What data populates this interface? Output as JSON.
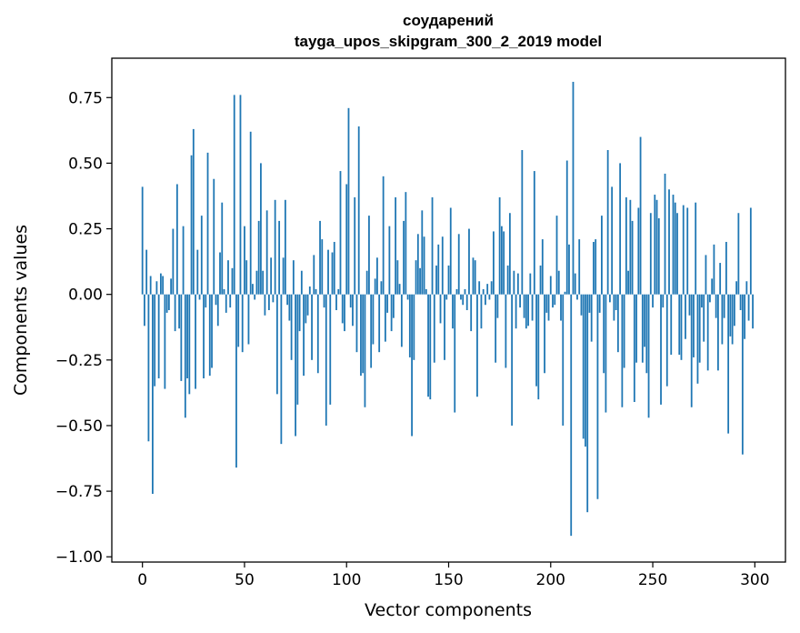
{
  "chart_data": {
    "type": "bar",
    "title": "соударений",
    "subtitle": "tayga_upos_skipgram_300_2_2019 model",
    "xlabel": "Vector components",
    "ylabel": "Components values",
    "xlim": [
      -15,
      315
    ],
    "ylim": [
      -1.02,
      0.9
    ],
    "xticks": [
      0,
      50,
      100,
      150,
      200,
      250,
      300
    ],
    "yticks": [
      -1.0,
      -0.75,
      -0.5,
      -0.25,
      0.0,
      0.25,
      0.5,
      0.75
    ],
    "ytick_labels": [
      "−1.00",
      "−0.75",
      "−0.50",
      "−0.25",
      "0.00",
      "0.25",
      "0.50",
      "0.75"
    ],
    "grid": false,
    "bar_color": "#1f77b4",
    "values": [
      0.41,
      -0.12,
      0.17,
      -0.56,
      0.07,
      -0.76,
      -0.35,
      0.05,
      -0.32,
      0.08,
      0.07,
      -0.36,
      -0.07,
      -0.06,
      0.06,
      0.25,
      -0.14,
      0.42,
      -0.13,
      -0.33,
      0.26,
      -0.47,
      -0.32,
      -0.38,
      0.53,
      0.63,
      -0.36,
      0.17,
      -0.02,
      0.3,
      -0.32,
      -0.05,
      0.54,
      -0.31,
      -0.28,
      0.44,
      -0.04,
      -0.12,
      0.16,
      0.35,
      0.02,
      -0.07,
      0.13,
      -0.05,
      0.1,
      0.76,
      -0.66,
      -0.2,
      0.76,
      -0.22,
      0.26,
      0.13,
      -0.19,
      0.62,
      0.04,
      -0.02,
      0.09,
      0.28,
      0.5,
      0.09,
      -0.08,
      0.32,
      -0.06,
      0.14,
      -0.03,
      0.36,
      -0.38,
      0.28,
      -0.57,
      0.14,
      0.36,
      -0.04,
      -0.1,
      -0.25,
      0.13,
      -0.54,
      -0.42,
      -0.14,
      0.09,
      -0.31,
      -0.11,
      -0.08,
      0.03,
      -0.25,
      0.15,
      0.02,
      -0.3,
      0.28,
      0.21,
      -0.05,
      -0.5,
      0.17,
      -0.42,
      0.16,
      0.2,
      -0.06,
      0.02,
      0.47,
      -0.11,
      -0.14,
      0.42,
      0.71,
      -0.05,
      -0.12,
      0.37,
      -0.22,
      0.64,
      -0.31,
      -0.3,
      -0.43,
      0.09,
      0.3,
      -0.28,
      -0.19,
      0.06,
      0.14,
      -0.22,
      0.05,
      0.45,
      -0.18,
      -0.07,
      0.26,
      -0.14,
      -0.09,
      0.37,
      0.13,
      0.04,
      -0.2,
      0.28,
      0.39,
      -0.02,
      -0.24,
      -0.54,
      -0.25,
      0.13,
      0.23,
      0.1,
      0.32,
      0.22,
      0.02,
      -0.39,
      -0.4,
      0.37,
      -0.26,
      0.11,
      0.19,
      -0.11,
      0.22,
      -0.25,
      -0.02,
      0.11,
      0.33,
      -0.13,
      -0.45,
      0.02,
      0.23,
      -0.02,
      -0.04,
      0.02,
      -0.06,
      0.25,
      -0.14,
      0.14,
      0.13,
      -0.39,
      0.05,
      -0.13,
      0.02,
      -0.04,
      0.04,
      -0.02,
      0.05,
      0.24,
      -0.26,
      -0.09,
      0.37,
      0.26,
      0.24,
      -0.28,
      0.11,
      0.31,
      -0.5,
      0.09,
      -0.13,
      0.08,
      -0.05,
      0.55,
      -0.09,
      -0.13,
      -0.12,
      0.08,
      -0.1,
      0.47,
      -0.35,
      -0.4,
      0.11,
      0.21,
      -0.3,
      -0.07,
      -0.1,
      0.07,
      -0.05,
      -0.04,
      0.3,
      0.09,
      -0.1,
      -0.5,
      0.01,
      0.51,
      0.19,
      -0.92,
      0.81,
      0.08,
      -0.02,
      0.21,
      -0.08,
      -0.55,
      -0.58,
      -0.83,
      -0.07,
      -0.18,
      0.2,
      0.21,
      -0.78,
      -0.07,
      0.3,
      -0.3,
      -0.45,
      0.55,
      -0.03,
      0.41,
      -0.1,
      -0.06,
      -0.22,
      0.5,
      -0.43,
      -0.28,
      0.37,
      0.09,
      0.36,
      0.28,
      -0.41,
      -0.26,
      0.33,
      0.6,
      -0.26,
      -0.2,
      -0.3,
      -0.47,
      0.31,
      -0.05,
      0.38,
      0.36,
      0.29,
      -0.42,
      -0.05,
      0.46,
      -0.35,
      0.4,
      -0.23,
      0.38,
      0.35,
      0.31,
      -0.23,
      -0.25,
      0.34,
      -0.17,
      0.33,
      -0.08,
      -0.43,
      -0.24,
      0.35,
      -0.34,
      -0.26,
      -0.05,
      -0.18,
      0.15,
      -0.29,
      -0.03,
      0.06,
      0.19,
      -0.09,
      -0.29,
      0.12,
      -0.19,
      -0.09,
      0.2,
      -0.53,
      -0.16,
      -0.19,
      -0.12,
      0.05,
      0.31,
      -0.06,
      -0.61,
      -0.17,
      0.05,
      -0.1,
      0.33,
      -0.13
    ]
  }
}
